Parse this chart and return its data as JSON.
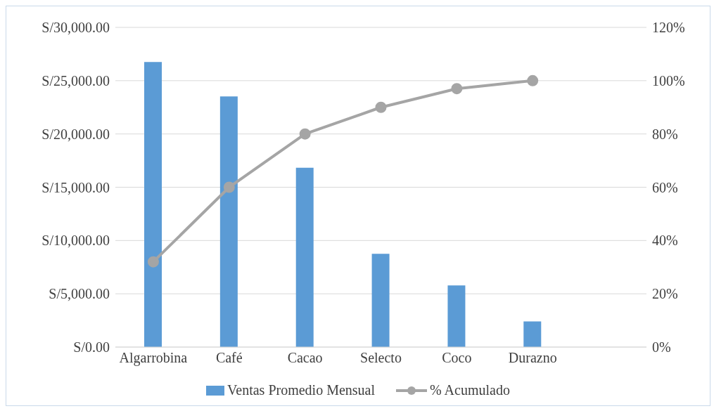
{
  "chart_data": {
    "type": "bar",
    "categories": [
      "Algarrobina",
      "Café",
      "Cacao",
      "Selecto",
      "Coco",
      "Durazno",
      null
    ],
    "series": [
      {
        "name": "Ventas Promedio Mensual",
        "color": "#5b9bd5",
        "values": [
          26760,
          23520,
          16830,
          8760,
          5790,
          2410,
          null
        ]
      },
      {
        "name": "% Acumulado",
        "type": "line",
        "axis": "y2",
        "color": "#a5a5a5",
        "values": [
          32,
          60,
          80,
          90,
          97,
          100,
          null
        ]
      }
    ],
    "ylim": [
      0,
      30000
    ],
    "yticks": [
      {
        "value": 0,
        "label": "S/0.00"
      },
      {
        "value": 5000,
        "label": "S/5,000.00"
      },
      {
        "value": 10000,
        "label": "S/10,000.00"
      },
      {
        "value": 15000,
        "label": "S/15,000.00"
      },
      {
        "value": 20000,
        "label": "S/20,000.00"
      },
      {
        "value": 25000,
        "label": "S/25,000.00"
      },
      {
        "value": 30000,
        "label": "S/30,000.00"
      }
    ],
    "y2lim": [
      0,
      120
    ],
    "y2ticks": [
      {
        "value": 0,
        "label": "0%"
      },
      {
        "value": 20,
        "label": "20%"
      },
      {
        "value": 40,
        "label": "40%"
      },
      {
        "value": 60,
        "label": "60%"
      },
      {
        "value": 80,
        "label": "80%"
      },
      {
        "value": 100,
        "label": "100%"
      },
      {
        "value": 120,
        "label": "120%"
      }
    ],
    "grid": "y",
    "legend": "bottom",
    "marker": "circle",
    "line_style": "solid"
  }
}
